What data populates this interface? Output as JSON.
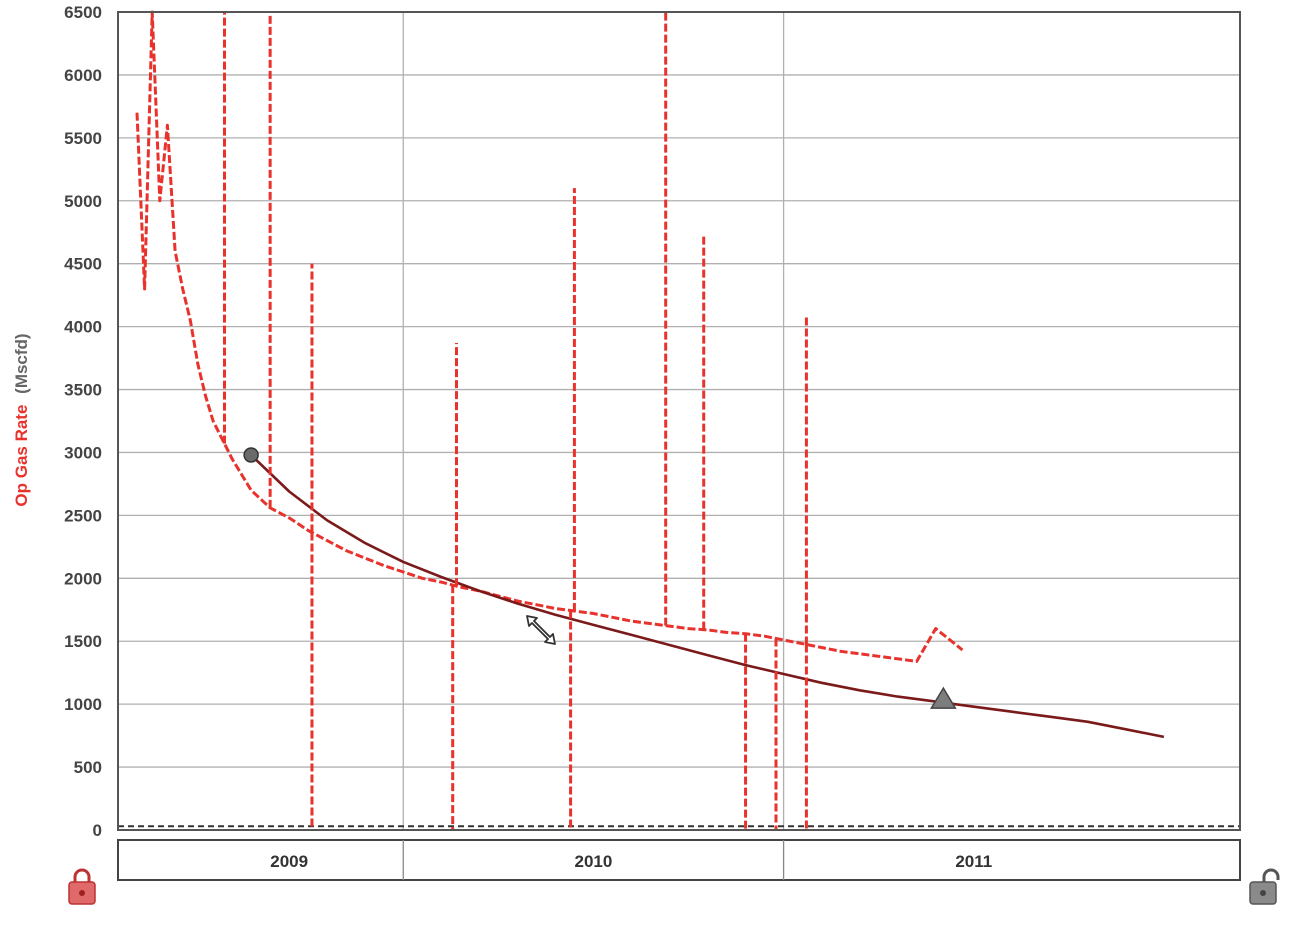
{
  "chart_data": {
    "type": "line",
    "ylabel_main": "Op Gas Rate",
    "ylabel_unit": "(Mscfd)",
    "ylim": [
      0,
      6500
    ],
    "yticks": [
      "6500",
      "6000",
      "5500",
      "5000",
      "4500",
      "4000",
      "3500",
      "3000",
      "2500",
      "2000",
      "1500",
      "1000",
      "500",
      "0"
    ],
    "years": [
      "2009",
      "2010",
      "2011"
    ],
    "grid": true,
    "series": [
      {
        "style": "dashed",
        "color": "#e8322c",
        "x": [
          2008.8,
          2008.82,
          2008.84,
          2008.86,
          2008.88,
          2008.9,
          2008.92,
          2008.94,
          2008.96,
          2008.98,
          2009.0,
          2009.05,
          2009.1,
          2009.15,
          2009.2,
          2009.25,
          2009.3,
          2009.35,
          2009.4,
          2009.45,
          2009.5,
          2009.55,
          2009.6,
          2009.65,
          2009.7,
          2009.75,
          2009.8,
          2009.85,
          2009.9,
          2009.95,
          2010.0,
          2010.05,
          2010.1,
          2010.15,
          2010.2,
          2010.25,
          2010.3,
          2010.35,
          2010.4,
          2010.45,
          2010.5,
          2010.55,
          2010.6,
          2010.65,
          2010.7,
          2010.75,
          2010.8,
          2010.85,
          2010.9,
          2010.95,
          2010.97
        ],
        "y": [
          5700,
          4300,
          6500,
          5000,
          5600,
          4600,
          4300,
          4050,
          3700,
          3450,
          3250,
          2950,
          2700,
          2560,
          2480,
          2380,
          2300,
          2220,
          2160,
          2100,
          2050,
          2000,
          1970,
          1930,
          1900,
          1860,
          1820,
          1790,
          1760,
          1740,
          1720,
          1690,
          1660,
          1640,
          1620,
          1600,
          1590,
          1570,
          1560,
          1540,
          1510,
          1480,
          1450,
          1420,
          1400,
          1380,
          1360,
          1340,
          1600,
          1480,
          1430
        ]
      },
      {
        "style": "solid",
        "color": "#7b1a1a",
        "x": [
          2009.1,
          2009.2,
          2009.3,
          2009.4,
          2009.5,
          2009.6,
          2009.7,
          2009.8,
          2009.9,
          2010.0,
          2010.1,
          2010.2,
          2010.3,
          2010.4,
          2010.5,
          2010.6,
          2010.7,
          2010.8,
          2010.9,
          2011.0,
          2011.1,
          2011.2,
          2011.3,
          2011.4,
          2011.5
        ],
        "y": [
          2980,
          2690,
          2460,
          2280,
          2130,
          2010,
          1900,
          1800,
          1710,
          1630,
          1550,
          1470,
          1390,
          1310,
          1240,
          1170,
          1110,
          1060,
          1020,
          980,
          940,
          900,
          860,
          800,
          740
        ]
      }
    ],
    "spikes": [
      {
        "x": 2009.03,
        "y": 6500
      },
      {
        "x": 2009.15,
        "y": 6500
      },
      {
        "x": 2009.26,
        "y": 4500
      },
      {
        "x": 2009.64,
        "y": 3870
      },
      {
        "x": 2009.95,
        "y": 5100
      },
      {
        "x": 2010.19,
        "y": 6500
      },
      {
        "x": 2010.29,
        "y": 4730
      },
      {
        "x": 2010.56,
        "y": 4080
      }
    ],
    "drops": [
      {
        "x": 2009.26,
        "y": 0
      },
      {
        "x": 2009.63,
        "y": 0
      },
      {
        "x": 2009.94,
        "y": 0
      },
      {
        "x": 2010.4,
        "y": 0
      },
      {
        "x": 2010.48,
        "y": 0
      },
      {
        "x": 2010.56,
        "y": 0
      }
    ],
    "markers": [
      {
        "shape": "circle",
        "x": 2009.1,
        "y": 2980
      },
      {
        "shape": "triangle",
        "x": 2010.92,
        "y": 1040
      }
    ],
    "baseline_y": 30,
    "colors": {
      "rate_line": "#e8322c",
      "fit_line": "#7b1a1a",
      "grid": "#b0b0b0",
      "axis_title": "#e8322c",
      "axis_unit": "#666666"
    },
    "icons": {
      "left": "lock-locked-icon",
      "right": "lock-unlocked-icon",
      "cursor": "resize-diagonal-icon"
    }
  }
}
